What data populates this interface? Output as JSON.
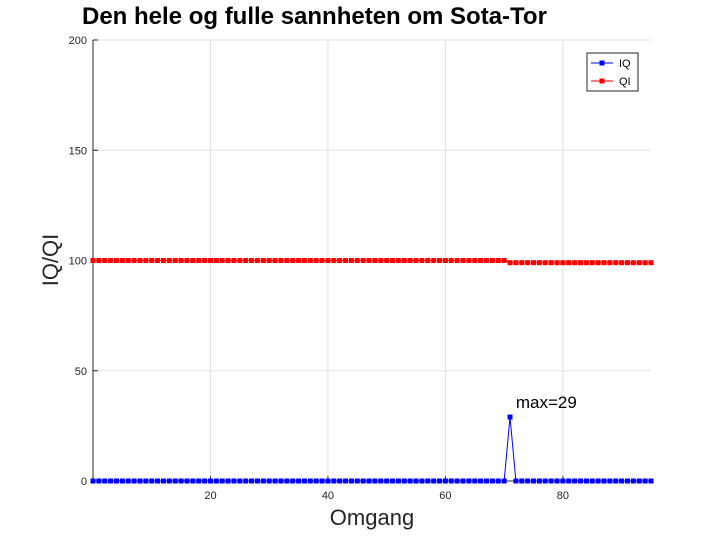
{
  "chart_data": {
    "type": "line",
    "title": "Den hele og fulle sannheten om Sota-Tor",
    "xlabel": "Omgang",
    "ylabel": "IQ/QI",
    "xlim": [
      0,
      95
    ],
    "ylim": [
      0,
      200
    ],
    "xticks": [
      20,
      40,
      60,
      80
    ],
    "yticks": [
      0,
      50,
      100,
      150,
      200
    ],
    "grid": true,
    "legend_position": "top-right",
    "x": [
      0,
      1,
      2,
      3,
      4,
      5,
      6,
      7,
      8,
      9,
      10,
      11,
      12,
      13,
      14,
      15,
      16,
      17,
      18,
      19,
      20,
      21,
      22,
      23,
      24,
      25,
      26,
      27,
      28,
      29,
      30,
      31,
      32,
      33,
      34,
      35,
      36,
      37,
      38,
      39,
      40,
      41,
      42,
      43,
      44,
      45,
      46,
      47,
      48,
      49,
      50,
      51,
      52,
      53,
      54,
      55,
      56,
      57,
      58,
      59,
      60,
      61,
      62,
      63,
      64,
      65,
      66,
      67,
      68,
      69,
      70,
      71,
      72,
      73,
      74,
      75,
      76,
      77,
      78,
      79,
      80,
      81,
      82,
      83,
      84,
      85,
      86,
      87,
      88,
      89,
      90,
      91,
      92,
      93,
      94,
      95
    ],
    "series": [
      {
        "name": "IQ",
        "color": "#0000ff",
        "marker": "square",
        "values": [
          0,
          0,
          0,
          0,
          0,
          0,
          0,
          0,
          0,
          0,
          0,
          0,
          0,
          0,
          0,
          0,
          0,
          0,
          0,
          0,
          0,
          0,
          0,
          0,
          0,
          0,
          0,
          0,
          0,
          0,
          0,
          0,
          0,
          0,
          0,
          0,
          0,
          0,
          0,
          0,
          0,
          0,
          0,
          0,
          0,
          0,
          0,
          0,
          0,
          0,
          0,
          0,
          0,
          0,
          0,
          0,
          0,
          0,
          0,
          0,
          0,
          0,
          0,
          0,
          0,
          0,
          0,
          0,
          0,
          0,
          0,
          29,
          0,
          0,
          0,
          0,
          0,
          0,
          0,
          0,
          0,
          0,
          0,
          0,
          0,
          0,
          0,
          0,
          0,
          0,
          0,
          0,
          0,
          0,
          0,
          0
        ]
      },
      {
        "name": "QI",
        "color": "#ff0000",
        "marker": "square",
        "values": [
          100,
          100,
          100,
          100,
          100,
          100,
          100,
          100,
          100,
          100,
          100,
          100,
          100,
          100,
          100,
          100,
          100,
          100,
          100,
          100,
          100,
          100,
          100,
          100,
          100,
          100,
          100,
          100,
          100,
          100,
          100,
          100,
          100,
          100,
          100,
          100,
          100,
          100,
          100,
          100,
          100,
          100,
          100,
          100,
          100,
          100,
          100,
          100,
          100,
          100,
          100,
          100,
          100,
          100,
          100,
          100,
          100,
          100,
          100,
          100,
          100,
          100,
          100,
          100,
          100,
          100,
          100,
          100,
          100,
          100,
          100,
          99,
          99,
          99,
          99,
          99,
          99,
          99,
          99,
          99,
          99,
          99,
          99,
          99,
          99,
          99,
          99,
          99,
          99,
          99,
          99,
          99,
          99,
          99,
          99,
          99
        ]
      }
    ],
    "annotations": [
      {
        "text": "max=29",
        "x": 72,
        "y": 33
      }
    ]
  }
}
